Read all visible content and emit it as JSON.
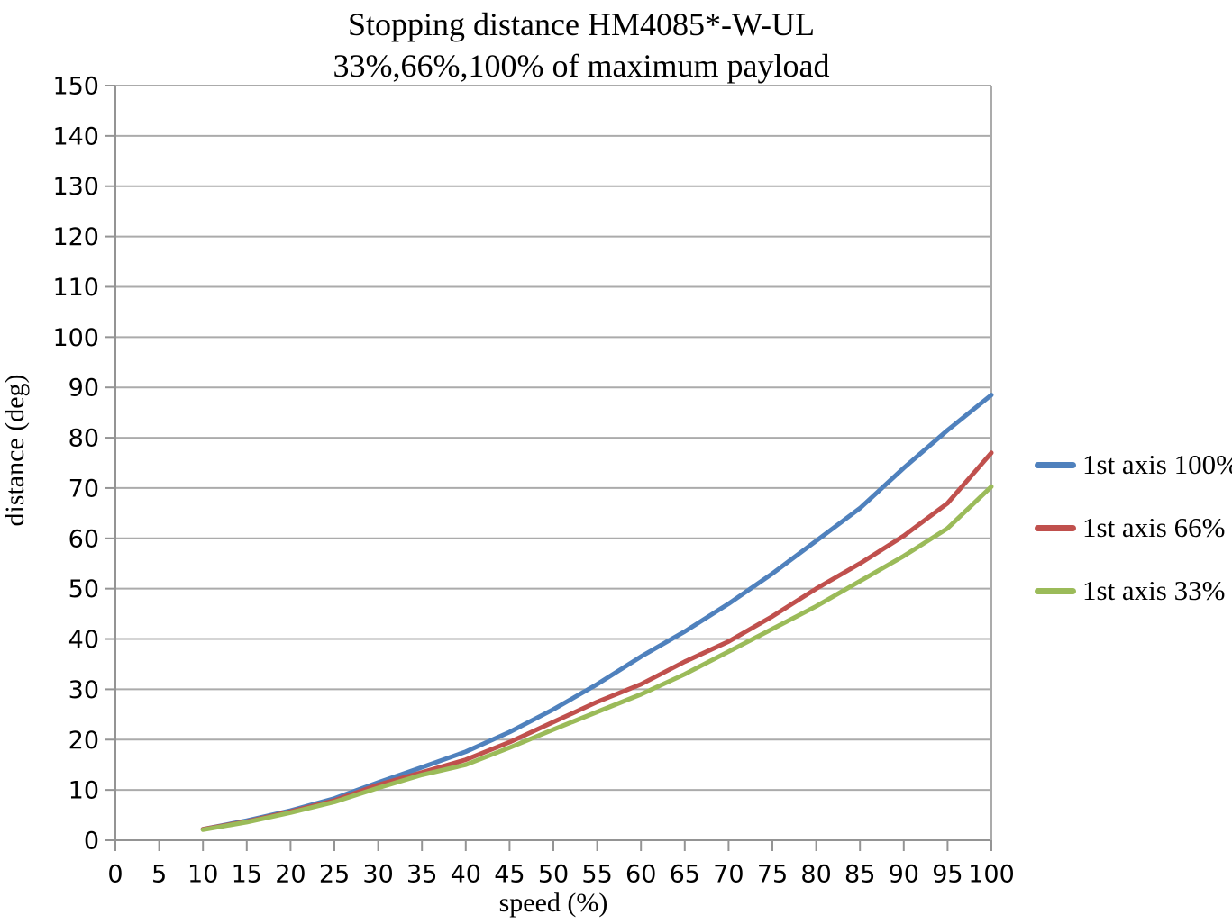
{
  "chart_data": {
    "type": "line",
    "title": "Stopping distance HM4085*-W-UL",
    "subtitle": "33%,66%,100% of maximum payload",
    "xlabel": "speed (%)",
    "ylabel": "distance (deg)",
    "xlim": [
      0,
      100
    ],
    "ylim": [
      0,
      150
    ],
    "x_ticks": [
      0,
      5,
      10,
      15,
      20,
      25,
      30,
      35,
      40,
      45,
      50,
      55,
      60,
      65,
      70,
      75,
      80,
      85,
      90,
      95,
      100
    ],
    "y_ticks": [
      0,
      10,
      20,
      30,
      40,
      50,
      60,
      70,
      80,
      90,
      100,
      110,
      120,
      130,
      140,
      150
    ],
    "grid": "horizontal-only",
    "legend_position": "right",
    "x": [
      10,
      15,
      20,
      25,
      30,
      35,
      40,
      45,
      50,
      55,
      60,
      65,
      70,
      75,
      80,
      85,
      90,
      95,
      100
    ],
    "series": [
      {
        "name": "1st axis 100%",
        "color": "#4F81BD",
        "values": [
          2.2,
          3.9,
          5.9,
          8.3,
          11.5,
          14.5,
          17.6,
          21.5,
          26,
          31,
          36.5,
          41.5,
          47,
          53,
          59.5,
          66,
          74,
          81.5,
          88.5
        ]
      },
      {
        "name": "1st axis 66%",
        "color": "#C0504D",
        "values": [
          2.2,
          3.7,
          5.7,
          7.9,
          11,
          13.5,
          16,
          19.5,
          23.5,
          27.5,
          31,
          35.5,
          39.5,
          44.5,
          50,
          55,
          60.5,
          67,
          77
        ]
      },
      {
        "name": "1st axis 33%",
        "color": "#9BBB59",
        "values": [
          2.1,
          3.6,
          5.5,
          7.6,
          10.4,
          13,
          15,
          18.4,
          22,
          25.5,
          29,
          33,
          37.5,
          42,
          46.5,
          51.5,
          56.5,
          62,
          70.3
        ]
      }
    ],
    "colors": {
      "gridline": "#ABABAB",
      "axis": "#949494",
      "tick_text": "#000000"
    }
  }
}
